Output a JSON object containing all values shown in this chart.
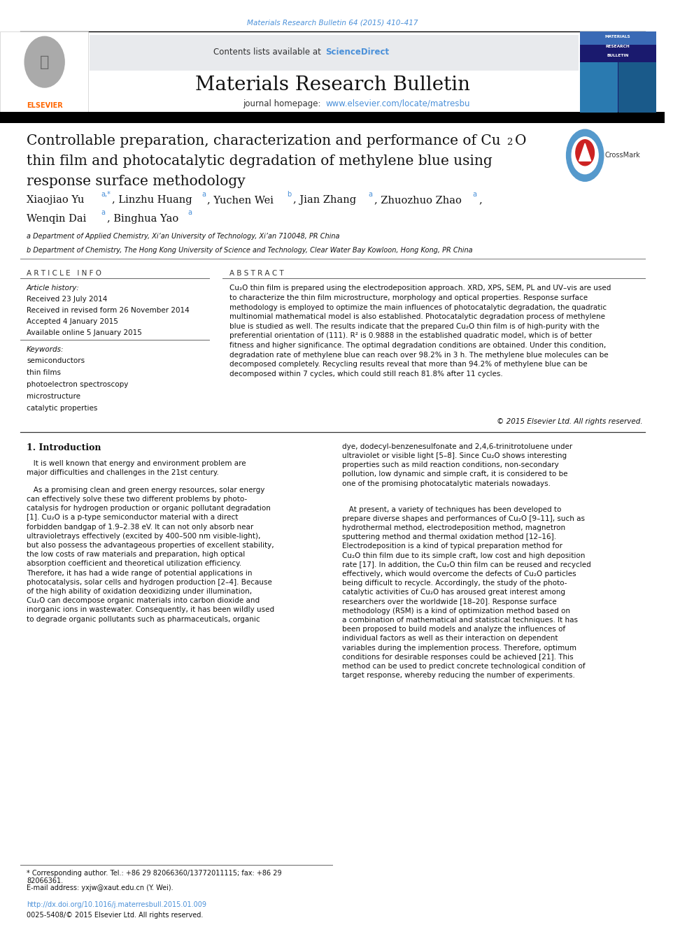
{
  "bg_color": "#ffffff",
  "page_width": 9.92,
  "page_height": 13.23,
  "journal_ref_color": "#4a90d9",
  "journal_ref": "Materials Research Bulletin 64 (2015) 410–417",
  "header_text": "Contents lists available at ",
  "sciencedirect_text": "ScienceDirect",
  "sciencedirect_color": "#4a90d9",
  "journal_title": "Materials Research Bulletin",
  "journal_homepage_label": "journal homepage: ",
  "journal_homepage_url": "www.elsevier.com/locate/matresbu",
  "journal_homepage_color": "#4a90d9",
  "article_title_line1": "Controllable preparation, characterization and performance of Cu",
  "article_title_line2": "thin film and photocatalytic degradation of methylene blue using",
  "article_title_line3": "response surface methodology",
  "affil_a": "a Department of Applied Chemistry, Xi’an University of Technology, Xi’an 710048, PR China",
  "affil_b": "b Department of Chemistry, The Hong Kong University of Science and Technology, Clear Water Bay Kowloon, Hong Kong, PR China",
  "article_info_header": "A R T I C L E   I N F O",
  "abstract_header": "A B S T R A C T",
  "article_history_label": "Article history:",
  "received": "Received 23 July 2014",
  "revised": "Received in revised form 26 November 2014",
  "accepted": "Accepted 4 January 2015",
  "available": "Available online 5 January 2015",
  "keywords_label": "Keywords:",
  "keywords": [
    "semiconductors",
    "thin films",
    "photoelectron spectroscopy",
    "microstructure",
    "catalytic properties"
  ],
  "abstract_text": "Cu₂O thin film is prepared using the electrodeposition approach. XRD, XPS, SEM, PL and UV–vis are used\nto characterize the thin film microstructure, morphology and optical properties. Response surface\nmethodology is employed to optimize the main influences of photocatalytic degradation, the quadratic\nmultinomial mathematical model is also established. Photocatalytic degradation process of methylene\nblue is studied as well. The results indicate that the prepared Cu₂O thin film is of high-purity with the\npreferential orientation of (111). R² is 0.9888 in the established quadratic model, which is of better\nfitness and higher significance. The optimal degradation conditions are obtained. Under this condition,\ndegradation rate of methylene blue can reach over 98.2% in 3 h. The methylene blue molecules can be\ndecomposed completely. Recycling results reveal that more than 94.2% of methylene blue can be\ndecomposed within 7 cycles, which could still reach 81.8% after 11 cycles.",
  "copyright": "© 2015 Elsevier Ltd. All rights reserved.",
  "intro_header": "1. Introduction",
  "left_col_para1": "   It is well known that energy and environment problem are\nmajor difficulties and challenges in the 21st century.",
  "left_col_para2": "   As a promising clean and green energy resources, solar energy\ncan effectively solve these two different problems by photo-\ncatalysis for hydrogen production or organic pollutant degradation\n[1]. Cu₂O is a p-type semiconductor material with a direct\nforbidden bandgap of 1.9–2.38 eV. It can not only absorb near\nultravioletrays effectively (excited by 400–500 nm visible-light),\nbut also possess the advantageous properties of excellent stability,\nthe low costs of raw materials and preparation, high optical\nabsorption coefficient and theoretical utilization efficiency.\nTherefore, it has had a wide range of potential applications in\nphotocatalysis, solar cells and hydrogen production [2–4]. Because\nof the high ability of oxidation deoxidizing under illumination,\nCu₂O can decompose organic materials into carbon dioxide and\ninorganic ions in wastewater. Consequently, it has been wildly used\nto degrade organic pollutants such as pharmaceuticals, organic",
  "right_col_para1": "dye, dodecyl-benzenesulfonate and 2,4,6-trinitrotoluene under\nultraviolet or visible light [5–8]. Since Cu₂O shows interesting\nproperties such as mild reaction conditions, non-secondary\npollution, low dynamic and simple craft, it is considered to be\none of the promising photocatalytic materials nowadays.",
  "right_col_para2": "   At present, a variety of techniques has been developed to\nprepare diverse shapes and performances of Cu₂O [9–11], such as\nhydrothermal method, electrodeposition method, magnetron\nsputtering method and thermal oxidation method [12–16].\nElectrodeposition is a kind of typical preparation method for\nCu₂O thin film due to its simple craft, low cost and high deposition\nrate [17]. In addition, the Cu₂O thin film can be reused and recycled\neffectively, which would overcome the defects of Cu₂O particles\nbeing difficult to recycle. Accordingly, the study of the photo-\ncatalytic activities of Cu₂O has aroused great interest among\nresearchers over the worldwide [18–20]. Response surface\nmethodology (RSM) is a kind of optimization method based on\na combination of mathematical and statistical techniques. It has\nbeen proposed to build models and analyze the influences of\nindividual factors as well as their interaction on dependent\nvariables during the implemention process. Therefore, optimum\nconditions for desirable responses could be achieved [21]. This\nmethod can be used to predict concrete technological condition of\ntarget response, whereby reducing the number of experiments.",
  "footnote_star": "* Corresponding author. Tel.: +86 29 82066360/13772011115; fax: +86 29\n82066361.",
  "footnote_email": "E-mail address: yxjw@xaut.edu.cn (Y. Wei).",
  "doi_text": "http://dx.doi.org/10.1016/j.materresbull.2015.01.009",
  "issn_text": "0025-5408/© 2015 Elsevier Ltd. All rights reserved.",
  "elsevier_orange": "#FF6600",
  "link_blue": "#4a90d9",
  "dark_navy": "#1a1a6e"
}
